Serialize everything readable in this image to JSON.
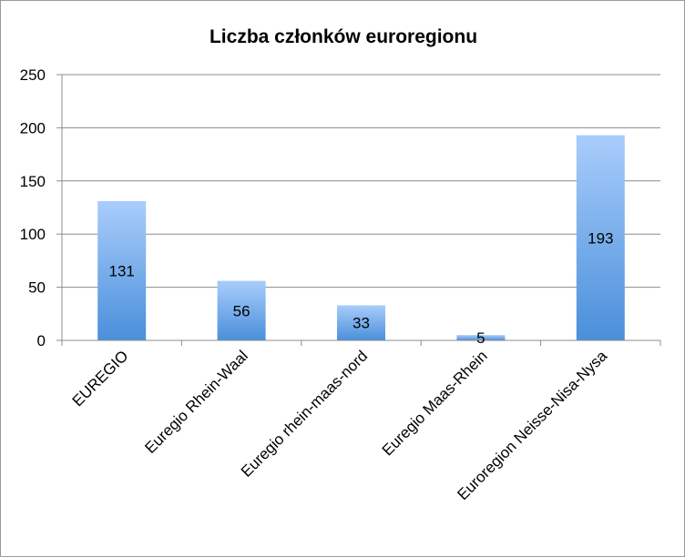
{
  "chart_data": {
    "type": "bar",
    "title": "Liczba członków euroregionu",
    "categories": [
      "EUREGIO",
      "Euregio Rhein-Waal",
      "Euregio rhein-maas-nord",
      "Euregio Maas-Rhein",
      "Euroregion Neisse-Nisa-Nysa"
    ],
    "values": [
      131,
      56,
      33,
      5,
      193
    ],
    "data_labels": [
      "131",
      "56",
      "33",
      "5",
      "193"
    ],
    "ylim": [
      0,
      250
    ],
    "yticks": [
      0,
      50,
      100,
      150,
      200,
      250
    ],
    "xlabel": "",
    "ylabel": "",
    "grid": true,
    "legend": "none",
    "colors": {
      "bar_top": "#a9cdfb",
      "bar_bottom": "#4a8fdb",
      "grid": "#8c8c8c",
      "axis": "#8c8c8c"
    }
  }
}
